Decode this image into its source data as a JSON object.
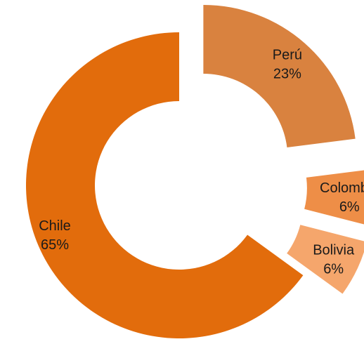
{
  "chart_data": {
    "type": "pie",
    "variant": "exploded-donut",
    "title": "",
    "legend": "none",
    "slices": [
      {
        "label": "Perú",
        "value": 23,
        "value_label": "23%",
        "color": "#D9823F"
      },
      {
        "label": "Colombia",
        "value": 6,
        "value_label": "6%",
        "color": "#EE8E47"
      },
      {
        "label": "Bolivia",
        "value": 6,
        "value_label": "6%",
        "color": "#F5A66C"
      },
      {
        "label": "Chile",
        "value": 65,
        "value_label": "65%",
        "color": "#E26C0C"
      }
    ]
  }
}
